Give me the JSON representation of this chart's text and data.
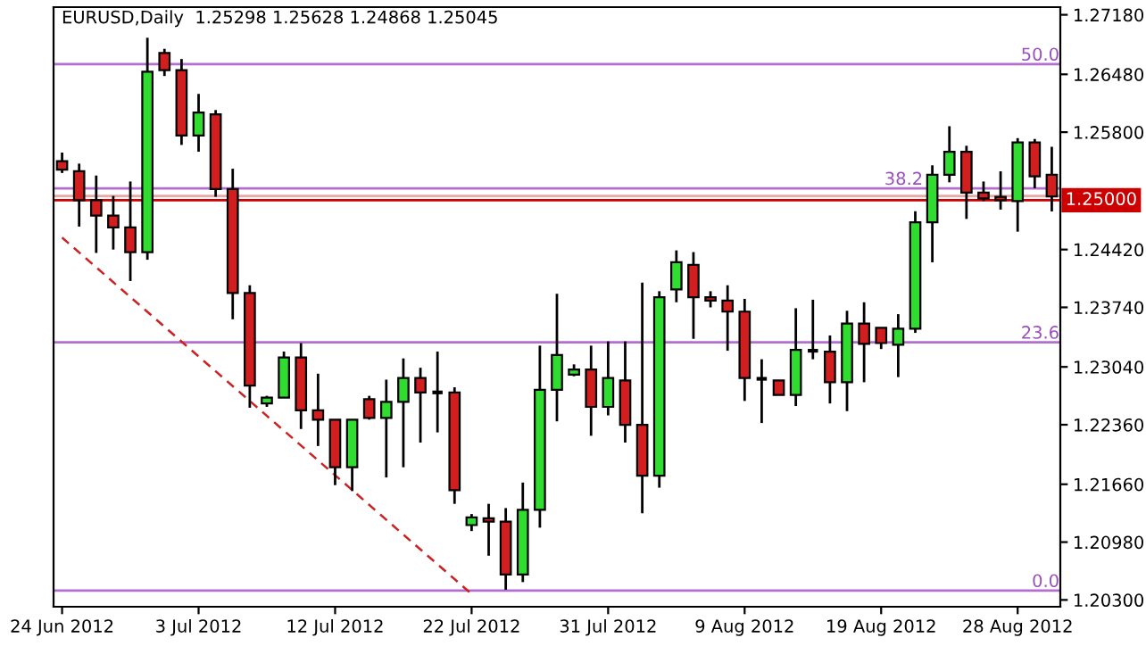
{
  "chart_data": {
    "type": "candlestick",
    "title": "EURUSD,Daily  1.25298 1.25628 1.24868 1.25045",
    "categories": [
      "24 Jun 2012",
      null,
      null,
      null,
      null,
      null,
      null,
      null,
      "3 Jul 2012",
      null,
      null,
      null,
      null,
      null,
      null,
      null,
      "12 Jul 2012",
      null,
      null,
      null,
      null,
      null,
      null,
      null,
      "22 Jul 2012",
      null,
      null,
      null,
      null,
      null,
      null,
      null,
      "31 Jul 2012",
      null,
      null,
      null,
      null,
      null,
      null,
      null,
      "9 Aug 2012",
      null,
      null,
      null,
      null,
      null,
      null,
      null,
      "19 Aug 2012",
      null,
      null,
      null,
      null,
      null,
      null,
      null,
      "28 Aug 2012",
      null,
      null
    ],
    "ohlc": [
      [
        1.2546,
        1.2556,
        1.2532,
        1.2536
      ],
      [
        1.2534,
        1.2543,
        1.2469,
        1.25
      ],
      [
        1.25,
        1.2529,
        1.2438,
        1.2482
      ],
      [
        1.2482,
        1.2505,
        1.2442,
        1.2468
      ],
      [
        1.2468,
        1.2522,
        1.2405,
        1.2439
      ],
      [
        1.2439,
        1.2691,
        1.243,
        1.2651
      ],
      [
        1.2673,
        1.2678,
        1.2646,
        1.2653
      ],
      [
        1.2653,
        1.2666,
        1.2565,
        1.2576
      ],
      [
        1.2576,
        1.2625,
        1.2557,
        1.2603
      ],
      [
        1.2601,
        1.2606,
        1.2504,
        1.2513
      ],
      [
        1.2513,
        1.2537,
        1.236,
        1.2391
      ],
      [
        1.2391,
        1.24,
        1.2256,
        1.2282
      ],
      [
        1.2261,
        1.227,
        1.2257,
        1.2268
      ],
      [
        1.2268,
        1.2322,
        1.2268,
        1.2315
      ],
      [
        1.2315,
        1.2332,
        1.2231,
        1.2253
      ],
      [
        1.2253,
        1.2296,
        1.2211,
        1.2242
      ],
      [
        1.2242,
        1.2242,
        1.2165,
        1.2186
      ],
      [
        1.2186,
        1.2242,
        1.2158,
        1.2242
      ],
      [
        1.2266,
        1.227,
        1.2242,
        1.2244
      ],
      [
        1.2244,
        1.2289,
        1.2174,
        1.2263
      ],
      [
        1.2263,
        1.2314,
        1.2186,
        1.2291
      ],
      [
        1.2291,
        1.2303,
        1.2215,
        1.2274
      ],
      [
        1.2274,
        1.2322,
        1.2227,
        1.2274
      ],
      [
        1.2274,
        1.228,
        1.2143,
        1.2159
      ],
      [
        1.2118,
        1.2131,
        1.2111,
        1.2127
      ],
      [
        1.2126,
        1.2143,
        1.2082,
        1.2122
      ],
      [
        1.2122,
        1.2138,
        1.2042,
        1.206
      ],
      [
        1.206,
        1.2168,
        1.2051,
        1.2136
      ],
      [
        1.2136,
        1.2329,
        1.2115,
        1.2277
      ],
      [
        1.2277,
        1.239,
        1.224,
        1.2318
      ],
      [
        1.2295,
        1.2307,
        1.2293,
        1.2301
      ],
      [
        1.2301,
        1.2329,
        1.2223,
        1.2257
      ],
      [
        1.2257,
        1.2334,
        1.2247,
        1.2291
      ],
      [
        1.2288,
        1.2334,
        1.2215,
        1.2236
      ],
      [
        1.2236,
        1.2403,
        1.2132,
        1.2176
      ],
      [
        1.2176,
        1.2393,
        1.2162,
        1.2386
      ],
      [
        1.2395,
        1.2441,
        1.238,
        1.2427
      ],
      [
        1.2424,
        1.2439,
        1.2337,
        1.2386
      ],
      [
        1.2386,
        1.2393,
        1.2374,
        1.2382
      ],
      [
        1.2382,
        1.24,
        1.2323,
        1.2369
      ],
      [
        1.2369,
        1.2384,
        1.2264,
        1.2291
      ],
      [
        1.229,
        1.2313,
        1.2238,
        1.229
      ],
      [
        1.2288,
        1.2288,
        1.2271,
        1.2271
      ],
      [
        1.2271,
        1.2373,
        1.2258,
        1.2324
      ],
      [
        1.2323,
        1.2383,
        1.2313,
        1.2323
      ],
      [
        1.2322,
        1.2341,
        1.2261,
        1.2286
      ],
      [
        1.2286,
        1.237,
        1.2252,
        1.2355
      ],
      [
        1.2355,
        1.238,
        1.2286,
        1.2331
      ],
      [
        1.235,
        1.235,
        1.2325,
        1.2332
      ],
      [
        1.233,
        1.2366,
        1.2292,
        1.2349
      ],
      [
        1.2349,
        1.2487,
        1.2344,
        1.2474
      ],
      [
        1.2474,
        1.2541,
        1.2427,
        1.253
      ],
      [
        1.253,
        1.2587,
        1.2521,
        1.2557
      ],
      [
        1.2557,
        1.2564,
        1.2478,
        1.2509
      ],
      [
        1.2509,
        1.2522,
        1.2499,
        1.2502
      ],
      [
        1.2504,
        1.2534,
        1.2489,
        1.25
      ],
      [
        1.2499,
        1.2573,
        1.2463,
        1.2568
      ],
      [
        1.2568,
        1.2572,
        1.2514,
        1.2528
      ],
      [
        1.25298,
        1.25628,
        1.24868,
        1.25045
      ]
    ],
    "colors": [
      "#d21e1e",
      "#d21e1e",
      "#d21e1e",
      "#d21e1e",
      "#d21e1e",
      "#2fdc2f",
      "#d21e1e",
      "#d21e1e",
      "#2fdc2f",
      "#d21e1e",
      "#d21e1e",
      "#d21e1e",
      "#2fdc2f",
      "#2fdc2f",
      "#d21e1e",
      "#d21e1e",
      "#d21e1e",
      "#2fdc2f",
      "#d21e1e",
      "#2fdc2f",
      "#2fdc2f",
      "#d21e1e",
      "#000000",
      "#d21e1e",
      "#2fdc2f",
      "#d21e1e",
      "#d21e1e",
      "#2fdc2f",
      "#2fdc2f",
      "#2fdc2f",
      "#2fdc2f",
      "#d21e1e",
      "#2fdc2f",
      "#d21e1e",
      "#d21e1e",
      "#2fdc2f",
      "#2fdc2f",
      "#d21e1e",
      "#d21e1e",
      "#d21e1e",
      "#d21e1e",
      "#000000",
      "#d21e1e",
      "#2fdc2f",
      "#000000",
      "#d21e1e",
      "#2fdc2f",
      "#d21e1e",
      "#d21e1e",
      "#2fdc2f",
      "#2fdc2f",
      "#2fdc2f",
      "#2fdc2f",
      "#d21e1e",
      "#d21e1e",
      "#d21e1e",
      "#2fdc2f",
      "#d21e1e",
      "#d21e1e"
    ],
    "series": [
      {
        "type": "line",
        "color": "#cc2222",
        "line_style": "dashed",
        "values": [
          1.2456,
          null,
          null,
          null,
          null,
          null,
          null,
          null,
          null,
          null,
          null,
          null,
          null,
          null,
          null,
          null,
          null,
          null,
          null,
          null,
          null,
          null,
          null,
          null,
          1.2037,
          null,
          null,
          null,
          null,
          null,
          null,
          null,
          null,
          null,
          null,
          null,
          null,
          null,
          null,
          null,
          null,
          null,
          null,
          null,
          null,
          null,
          null,
          null,
          null,
          null,
          null,
          null,
          null,
          null,
          null,
          null,
          null,
          null,
          null
        ]
      }
    ],
    "ylim": [
      1.2022,
      1.2727
    ],
    "yticks": [
      {
        "value": 1.2718,
        "label": "1.27180"
      },
      {
        "value": 1.2648,
        "label": "1.26480"
      },
      {
        "value": 1.258,
        "label": "1.25800"
      },
      {
        "value": 1.2442,
        "label": "1.24420"
      },
      {
        "value": 1.2374,
        "label": "1.23740"
      },
      {
        "value": 1.2304,
        "label": "1.23040"
      },
      {
        "value": 1.2236,
        "label": "1.22360"
      },
      {
        "value": 1.2166,
        "label": "1.21660"
      },
      {
        "value": 1.2098,
        "label": "1.20980"
      },
      {
        "value": 1.203,
        "label": "1.20300"
      }
    ],
    "annotations": [
      {
        "text": "50.0",
        "y": 1.266
      },
      {
        "text": "38.2",
        "y": 1.2514
      },
      {
        "text": "23.6",
        "y": 1.2333
      },
      {
        "text": "0.0",
        "y": 1.2041
      }
    ],
    "ref_lines": [
      {
        "axis": "y",
        "value": 1.266,
        "label": null,
        "color": "#b46ed2"
      },
      {
        "axis": "y",
        "value": 1.2514,
        "label": null,
        "color": "#b46ed2"
      },
      {
        "axis": "y",
        "value": 1.2333,
        "label": null,
        "color": "#b46ed2"
      },
      {
        "axis": "y",
        "value": 1.2041,
        "label": null,
        "color": "#b46ed2"
      },
      {
        "axis": "y",
        "value": 1.2505,
        "label": null,
        "color": "#e9a9a9"
      },
      {
        "axis": "y",
        "value": 1.25,
        "label": "1.25000",
        "color": "#cc0000"
      }
    ],
    "grid": false,
    "legend": false
  }
}
